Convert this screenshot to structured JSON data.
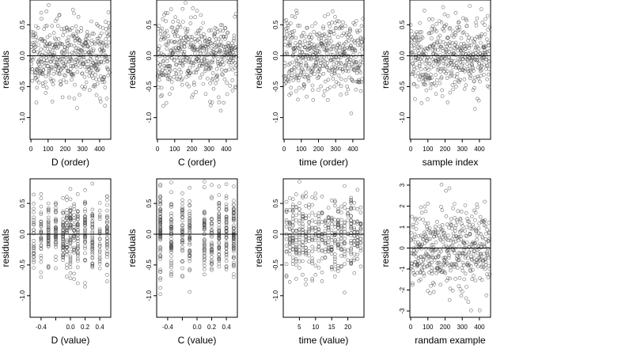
{
  "page": {
    "background": "#ffffff",
    "point_color": "#444444",
    "axis_color": "#000000"
  },
  "chart_data": [
    {
      "type": "scatter",
      "xlabel": "D (order)",
      "ylabel": "residuals",
      "x_ticks": [
        "0",
        "100",
        "200",
        "300",
        "400"
      ],
      "y_ticks": [
        "0.5",
        "0.0",
        "-0.5",
        "-1.0"
      ],
      "xlim": [
        -5,
        465
      ],
      "ylim": [
        -1.35,
        0.9
      ],
      "hline": 0,
      "grid": false,
      "values": {
        "n": 460,
        "pattern": "index",
        "seed": 11,
        "sd": 0.3
      },
      "x_range": [
        0,
        460
      ]
    },
    {
      "type": "scatter",
      "xlabel": "C (order)",
      "ylabel": "residuals",
      "x_ticks": [
        "0",
        "100",
        "200",
        "300",
        "400"
      ],
      "y_ticks": [
        "0.5",
        "0.0",
        "-0.5",
        "-1.0"
      ],
      "xlim": [
        -5,
        465
      ],
      "ylim": [
        -1.35,
        0.9
      ],
      "hline": 0,
      "grid": false,
      "values": {
        "n": 460,
        "pattern": "index",
        "seed": 23,
        "sd": 0.3
      },
      "x_range": [
        0,
        460
      ]
    },
    {
      "type": "scatter",
      "xlabel": "time (order)",
      "ylabel": "residuals",
      "x_ticks": [
        "0",
        "100",
        "200",
        "300",
        "400"
      ],
      "y_ticks": [
        "0.5",
        "0.0",
        "-0.5",
        "-1.0"
      ],
      "xlim": [
        -5,
        465
      ],
      "ylim": [
        -1.35,
        0.9
      ],
      "hline": 0,
      "grid": false,
      "values": {
        "n": 460,
        "pattern": "index",
        "seed": 37,
        "sd": 0.3
      },
      "x_range": [
        0,
        460
      ]
    },
    {
      "type": "scatter",
      "xlabel": "sample index",
      "ylabel": "residuals",
      "x_ticks": [
        "0",
        "100",
        "200",
        "300",
        "400"
      ],
      "y_ticks": [
        "0.5",
        "0.0",
        "-0.5",
        "-1.0"
      ],
      "xlim": [
        -5,
        465
      ],
      "ylim": [
        -1.35,
        0.9
      ],
      "hline": 0,
      "grid": false,
      "values": {
        "n": 460,
        "pattern": "index",
        "seed": 41,
        "sd": 0.3
      },
      "x_range": [
        0,
        460
      ]
    },
    {
      "type": "scatter",
      "xlabel": "D (value)",
      "ylabel": "residuals",
      "x_ticks": [
        "-0.4",
        "",
        "0.0",
        "0.2",
        "0.4"
      ],
      "y_ticks": [
        "0.5",
        "0.0",
        "-0.5",
        "-1.0"
      ],
      "xlim": [
        -0.55,
        0.55
      ],
      "ylim": [
        -1.35,
        0.9
      ],
      "hline": 0,
      "grid": false,
      "values": {
        "n": 460,
        "pattern": "levels",
        "seed": 53,
        "sd": 0.3
      },
      "x_levels": [
        -0.5,
        -0.4,
        -0.3,
        -0.2,
        -0.1,
        -0.05,
        0.0,
        0.05,
        0.1,
        0.2,
        0.3,
        0.4,
        0.5
      ]
    },
    {
      "type": "scatter",
      "xlabel": "C (value)",
      "ylabel": "residuals",
      "x_ticks": [
        "-0.4",
        "",
        "0.0",
        "0.2",
        "0.4"
      ],
      "y_ticks": [
        "0.5",
        "0.0",
        "-0.5",
        "-1.0"
      ],
      "xlim": [
        -0.55,
        0.55
      ],
      "ylim": [
        -1.35,
        0.9
      ],
      "hline": 0,
      "grid": false,
      "values": {
        "n": 460,
        "pattern": "levels",
        "seed": 67,
        "sd": 0.3
      },
      "x_levels": [
        -0.5,
        -0.35,
        -0.2,
        -0.1,
        0.1,
        0.2,
        0.3,
        0.4,
        0.5
      ]
    },
    {
      "type": "scatter",
      "xlabel": "time (value)",
      "ylabel": "residuals",
      "x_ticks": [
        "5",
        "10",
        "15",
        "20"
      ],
      "y_ticks": [
        "0.5",
        "0.0",
        "-0.5",
        "-1.0"
      ],
      "xlim": [
        0,
        25
      ],
      "ylim": [
        -1.35,
        0.9
      ],
      "hline": 0,
      "grid": false,
      "values": {
        "n": 460,
        "pattern": "levels",
        "seed": 71,
        "sd": 0.3
      },
      "x_levels": [
        1,
        2,
        3,
        4,
        5,
        6,
        7,
        8,
        9,
        10,
        11,
        12,
        13,
        14,
        15,
        16,
        17,
        18,
        19,
        20,
        21,
        22,
        23,
        24
      ]
    },
    {
      "type": "scatter",
      "xlabel": "randam example",
      "ylabel": "residuals",
      "x_ticks": [
        "0",
        "100",
        "200",
        "300",
        "400"
      ],
      "y_ticks": [
        "3",
        "2",
        "1",
        "0",
        "-1",
        "-2",
        "-3"
      ],
      "xlim": [
        -5,
        465
      ],
      "ylim": [
        -3.3,
        3.3
      ],
      "hline": 0,
      "grid": false,
      "values": {
        "n": 460,
        "pattern": "index",
        "seed": 89,
        "sd": 1.0
      },
      "x_range": [
        0,
        460
      ]
    }
  ]
}
